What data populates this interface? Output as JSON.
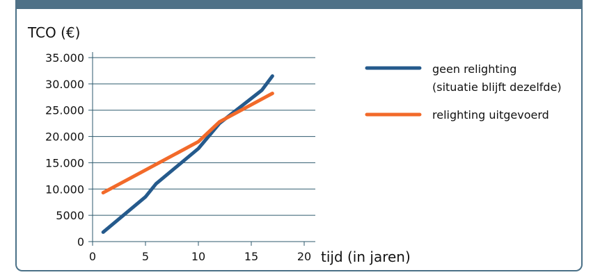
{
  "colors": {
    "panel_border": "#4a7087",
    "header_bar": "#4f7187",
    "gridline": "#2e5a6e",
    "series_blue": "#255a8c",
    "series_orange": "#f26a2a"
  },
  "chart_data": {
    "type": "line",
    "title": "",
    "ylabel": "TCO (€)",
    "xlabel": "tijd (in jaren)",
    "xlim": [
      0,
      20
    ],
    "ylim": [
      0,
      35000
    ],
    "x_ticks": [
      0,
      5,
      10,
      15,
      20
    ],
    "x_tick_labels": [
      "0",
      "5",
      "10",
      "15",
      "20"
    ],
    "y_ticks": [
      0,
      5000,
      10000,
      15000,
      20000,
      25000,
      30000,
      35000
    ],
    "y_tick_labels": [
      "0",
      "5000",
      "10.000",
      "15.000",
      "20.000",
      "25.000",
      "30.000",
      "35.000"
    ],
    "grid": "horizontal",
    "legend_position": "right",
    "series": [
      {
        "name": "geen relighting",
        "name_line2": "(situatie blijft dezelfde)",
        "color": "#255a8c",
        "points": [
          [
            1,
            1800
          ],
          [
            5,
            8500
          ],
          [
            6,
            11000
          ],
          [
            10,
            17700
          ],
          [
            12,
            22500
          ],
          [
            16,
            28800
          ],
          [
            17,
            31500
          ]
        ]
      },
      {
        "name": "relighting uitgevoerd",
        "color": "#f26a2a",
        "points": [
          [
            1,
            9300
          ],
          [
            10,
            19000
          ],
          [
            12,
            22800
          ],
          [
            17,
            28200
          ]
        ]
      }
    ]
  }
}
